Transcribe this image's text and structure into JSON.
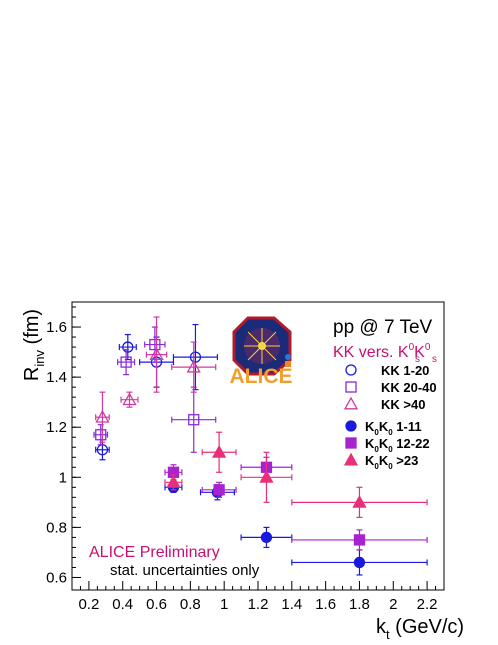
{
  "chart_data": {
    "type": "scatter",
    "ylabel_main": "R",
    "ylabel_sub": "inv",
    "ylabel_unit": " (fm)",
    "xlabel_main": "k",
    "xlabel_sub": "t",
    "xlabel_unit": " (GeV/c)",
    "xlim": [
      0.1,
      2.3
    ],
    "ylim": [
      0.55,
      1.7
    ],
    "x_ticks": [
      "0.2",
      "0.4",
      "0.6",
      "0.8",
      "1",
      "1.2",
      "1.4",
      "1.6",
      "1.8",
      "2",
      "2.2"
    ],
    "x_tick_values": [
      0.2,
      0.4,
      0.6,
      0.8,
      1.0,
      1.2,
      1.4,
      1.6,
      1.8,
      2.0,
      2.2
    ],
    "y_ticks": [
      "0.6",
      "0.8",
      "1",
      "1.2",
      "1.4",
      "1.6"
    ],
    "y_tick_values": [
      0.6,
      0.8,
      1.0,
      1.2,
      1.4,
      1.6
    ],
    "annotations": {
      "system": "pp @ 7 TeV",
      "comparison": "KK vers. K",
      "comparison_sup1": "0",
      "comparison_k2": "K",
      "comparison_sup2": "0",
      "comparison_sub1": "s",
      "comparison_sub2": "s",
      "preliminary": "ALICE Preliminary",
      "uncertainties": "stat. uncertainties only",
      "logo": "ALICE"
    },
    "legend_position": "right",
    "series": [
      {
        "name": "KK 1-20",
        "legend_label": "KK 1-20",
        "marker": "circle-open",
        "color": "#1a1adc",
        "points": [
          {
            "x": 0.28,
            "y": 1.11,
            "xerr": 0.04,
            "yerr": 0.04
          },
          {
            "x": 0.43,
            "y": 1.52,
            "xerr": 0.05,
            "yerr": 0.05
          },
          {
            "x": 0.6,
            "y": 1.46,
            "xerr": 0.1,
            "yerr": 0.1
          },
          {
            "x": 0.83,
            "y": 1.48,
            "xerr": 0.13,
            "yerr": 0.13
          }
        ]
      },
      {
        "name": "KK 20-40",
        "legend_label": "KK 20-40",
        "marker": "square-open",
        "color": "#8c2adc",
        "points": [
          {
            "x": 0.27,
            "y": 1.17,
            "xerr": 0.04,
            "yerr": 0.04
          },
          {
            "x": 0.42,
            "y": 1.46,
            "xerr": 0.05,
            "yerr": 0.05
          },
          {
            "x": 0.59,
            "y": 1.53,
            "xerr": 0.06,
            "yerr": 0.07
          },
          {
            "x": 0.82,
            "y": 1.23,
            "xerr": 0.13,
            "yerr": 0.13
          }
        ]
      },
      {
        "name": "KK >40",
        "legend_label": "KK  >40",
        "marker": "triangle-open",
        "color": "#d03aa0",
        "points": [
          {
            "x": 0.28,
            "y": 1.24,
            "xerr": 0.04,
            "yerr": 0.1
          },
          {
            "x": 0.44,
            "y": 1.31,
            "xerr": 0.05,
            "yerr": 0.03
          },
          {
            "x": 0.6,
            "y": 1.49,
            "xerr": 0.06,
            "yerr": 0.15
          },
          {
            "x": 0.82,
            "y": 1.44,
            "xerr": 0.13,
            "yerr": 0.1
          }
        ]
      },
      {
        "name": "K0K0 1-11",
        "legend_label": "1-11",
        "marker": "circle-filled",
        "color": "#1a1adc",
        "points": [
          {
            "x": 0.7,
            "y": 0.96,
            "xerr": 0.05,
            "yerr": 0.02
          },
          {
            "x": 0.96,
            "y": 0.94,
            "xerr": 0.1,
            "yerr": 0.03
          },
          {
            "x": 1.25,
            "y": 0.76,
            "xerr": 0.15,
            "yerr": 0.04
          },
          {
            "x": 1.8,
            "y": 0.66,
            "xerr": 0.4,
            "yerr": 0.05
          }
        ]
      },
      {
        "name": "K0K0 12-22",
        "legend_label": "12-22",
        "marker": "square-filled",
        "color": "#a822d0",
        "points": [
          {
            "x": 0.7,
            "y": 1.02,
            "xerr": 0.05,
            "yerr": 0.03
          },
          {
            "x": 0.97,
            "y": 0.95,
            "xerr": 0.1,
            "yerr": 0.03
          },
          {
            "x": 1.25,
            "y": 1.04,
            "xerr": 0.15,
            "yerr": 0.04
          },
          {
            "x": 1.8,
            "y": 0.75,
            "xerr": 0.4,
            "yerr": 0.04
          }
        ]
      },
      {
        "name": "K0K0 >23",
        "legend_label": ">23",
        "marker": "triangle-filled",
        "color": "#e8307a",
        "points": [
          {
            "x": 0.7,
            "y": 0.98,
            "xerr": 0.05,
            "yerr": 0.03
          },
          {
            "x": 0.97,
            "y": 1.1,
            "xerr": 0.1,
            "yerr": 0.08
          },
          {
            "x": 1.25,
            "y": 1.0,
            "xerr": 0.15,
            "yerr": 0.1
          },
          {
            "x": 1.8,
            "y": 0.9,
            "xerr": 0.4,
            "yerr": 0.06
          }
        ]
      }
    ]
  }
}
